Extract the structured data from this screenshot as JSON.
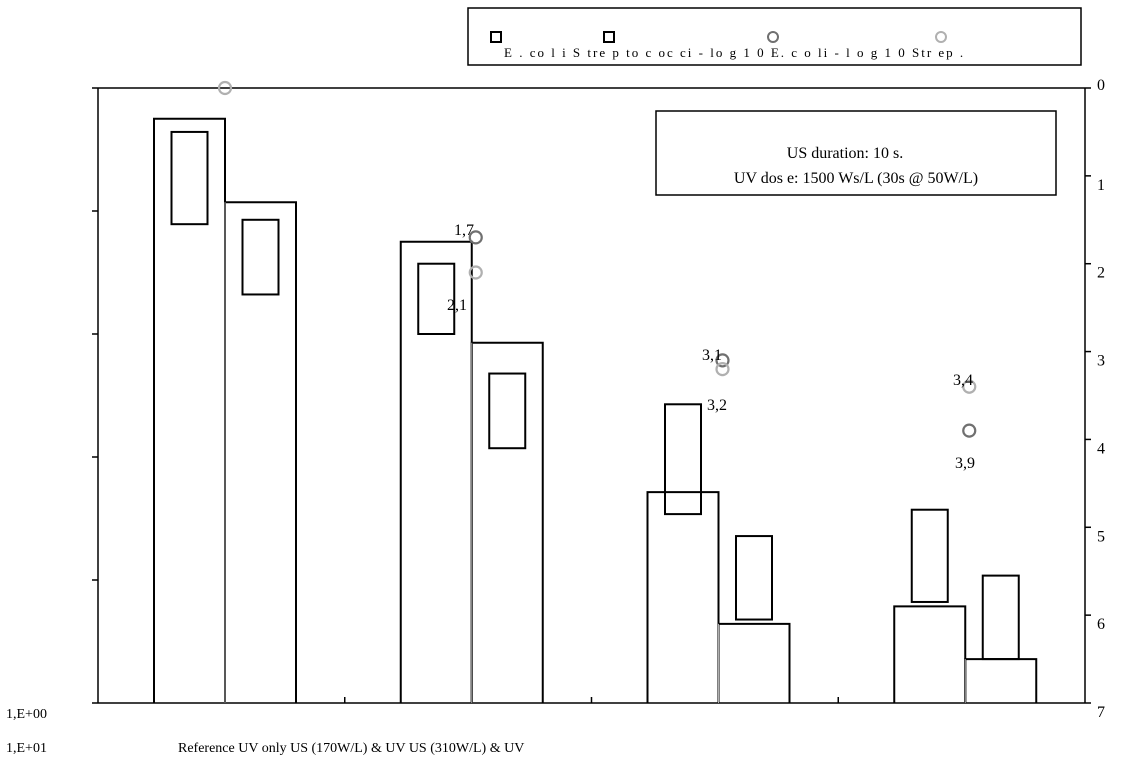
{
  "chart_data": {
    "type": "bar",
    "categories_label": "Reference UV only US (170W/L) & UV US (310W/L) & UV",
    "categories": [
      "Reference",
      "UV only",
      "US (170W/L) & UV",
      "US (310W/L) & UV"
    ],
    "series": [
      {
        "name": "E. coli",
        "bar_top": [
          0.35,
          1.75,
          4.6,
          5.9
        ],
        "inner_top": [
          0.5,
          2.0,
          3.6,
          4.8
        ],
        "inner_bottom": [
          1.55,
          2.8,
          4.85,
          5.85
        ]
      },
      {
        "name": "Streptococci",
        "bar_top": [
          1.3,
          2.9,
          6.1,
          6.5
        ],
        "inner_top": [
          1.5,
          3.25,
          5.1,
          5.55
        ],
        "inner_bottom": [
          2.35,
          4.1,
          6.05,
          6.5
        ]
      }
    ],
    "log10_series": [
      {
        "name": "-log10 E. coli",
        "values": [
          null,
          1.7,
          3.1,
          3.9
        ],
        "color": "#707070"
      },
      {
        "name": "-log10 Strep.",
        "values": [
          0,
          2.1,
          3.2,
          3.4
        ],
        "color": "#b0b0b0"
      }
    ],
    "point_labels": [
      {
        "text": "1,7"
      },
      {
        "text": "2,1"
      },
      {
        "text": "3,1"
      },
      {
        "text": "3,2"
      },
      {
        "text": "3,4"
      },
      {
        "text": "3,9"
      }
    ],
    "left_axis_labels": [
      "1,E+00",
      "1,E+01"
    ],
    "right_axis": {
      "ticks": [
        "0",
        "1",
        "2",
        "3",
        "4",
        "5",
        "6",
        "7"
      ],
      "ylim": [
        0,
        7
      ],
      "inverted": true
    },
    "legend": {
      "text": "E .   co l i S tre p to c oc ci - lo g 1 0     E.   c o li - l o g 1 0    Str ep .",
      "placement": "top-right"
    },
    "annotation": {
      "line1": "US duration: 10 s.",
      "line2": "UV dos e: 1500 Ws/L (30s @ 50W/L)"
    },
    "colors": {
      "bar_stroke": "#000000",
      "strep_bottom": "#b0b0b0",
      "ecoli_marker": "#707070",
      "strep_marker": "#b0b0b0"
    }
  }
}
